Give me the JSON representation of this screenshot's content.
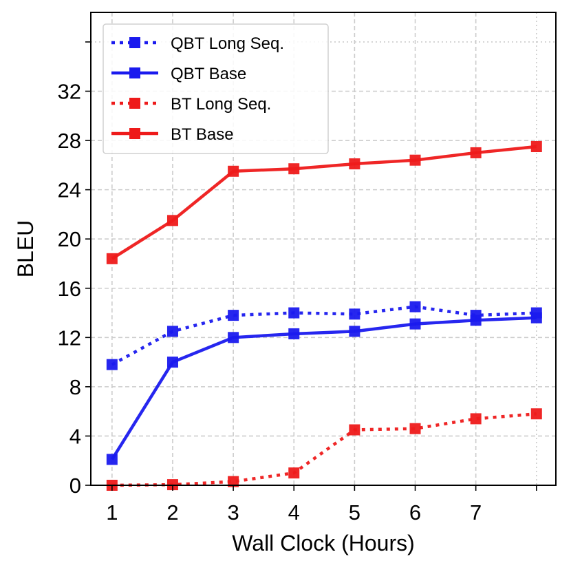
{
  "chart_data": {
    "type": "line",
    "title": "",
    "xlabel": "Wall Clock (Hours)",
    "ylabel": "BLEU",
    "x": [
      1,
      2,
      3,
      4,
      5,
      6,
      7,
      8
    ],
    "xticks": [
      1,
      2,
      3,
      4,
      5,
      6,
      7,
      8
    ],
    "xtick_labels": [
      "1",
      "2",
      "3",
      "4",
      "5",
      "6",
      "7",
      ""
    ],
    "yticks": [
      0,
      4,
      8,
      12,
      16,
      20,
      24,
      28,
      32,
      36
    ],
    "ytick_labels": [
      "0",
      "4",
      "8",
      "12",
      "16",
      "20",
      "24",
      "28",
      "32",
      ""
    ],
    "xlim": [
      0.65,
      8.32
    ],
    "ylim": [
      0,
      38.4
    ],
    "grid": true,
    "legend_position": "top-left",
    "series": [
      {
        "name": "QBT Long Seq.",
        "color": "#1a1aee",
        "linestyle": "dotted",
        "marker": "square",
        "values": [
          9.8,
          12.5,
          13.8,
          14.0,
          13.9,
          14.5,
          13.8,
          14.0
        ]
      },
      {
        "name": "QBT Base",
        "color": "#1a1aee",
        "linestyle": "solid",
        "marker": "square",
        "values": [
          2.1,
          10.0,
          12.0,
          12.3,
          12.5,
          13.1,
          13.4,
          13.6
        ]
      },
      {
        "name": "BT Long Seq.",
        "color": "#ee1a1a",
        "linestyle": "dotted",
        "marker": "square",
        "values": [
          0.0,
          0.05,
          0.3,
          1.0,
          4.5,
          4.6,
          5.4,
          5.8
        ]
      },
      {
        "name": "BT Base",
        "color": "#ee1a1a",
        "linestyle": "solid",
        "marker": "square",
        "values": [
          18.4,
          21.5,
          25.5,
          25.7,
          26.1,
          26.4,
          27.0,
          27.5
        ]
      }
    ]
  }
}
